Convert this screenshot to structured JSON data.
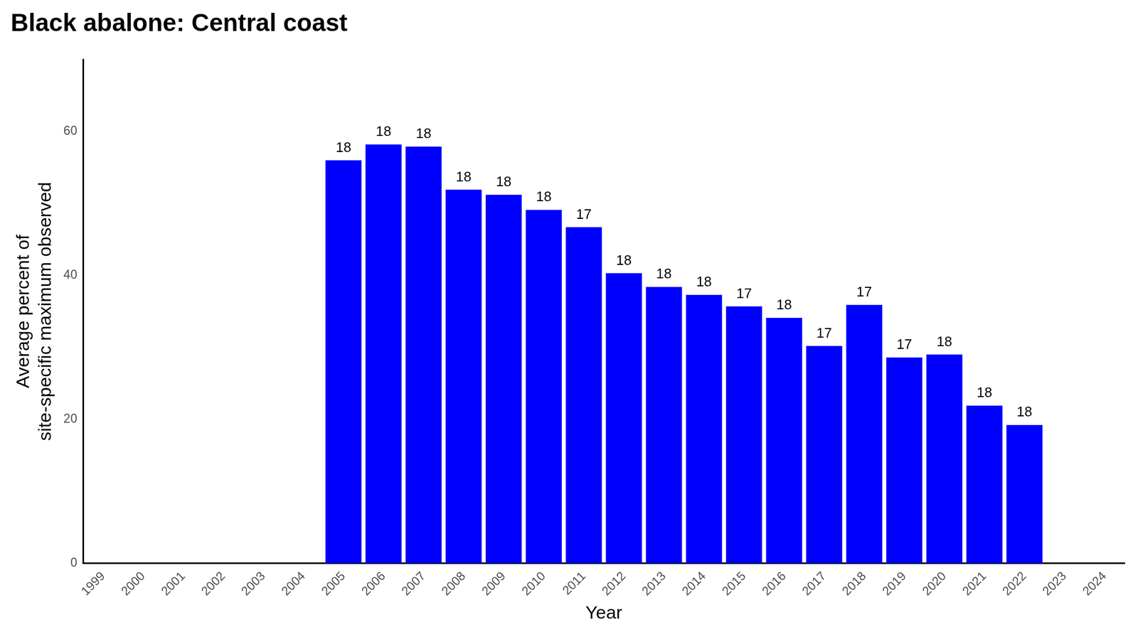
{
  "chart_data": {
    "type": "bar",
    "title": "Black abalone: Central coast",
    "x_label": "Year",
    "y_label": [
      "Average percent of",
      "site-specific maximum observed"
    ],
    "categories": [
      "1999",
      "2000",
      "2001",
      "2002",
      "2003",
      "2004",
      "2005",
      "2006",
      "2007",
      "2008",
      "2009",
      "2010",
      "2011",
      "2012",
      "2013",
      "2014",
      "2015",
      "2016",
      "2017",
      "2018",
      "2019",
      "2020",
      "2021",
      "2022",
      "2023",
      "2024"
    ],
    "values": [
      null,
      null,
      null,
      null,
      null,
      null,
      56.0,
      58.2,
      57.9,
      51.9,
      51.2,
      49.1,
      46.7,
      40.3,
      38.4,
      37.3,
      35.7,
      34.1,
      30.2,
      35.9,
      28.6,
      29.0,
      21.9,
      19.2,
      null,
      null
    ],
    "site_counts": [
      null,
      null,
      null,
      null,
      null,
      null,
      18,
      18,
      18,
      18,
      18,
      18,
      17,
      18,
      18,
      18,
      17,
      18,
      17,
      17,
      17,
      18,
      18,
      18,
      null,
      null
    ],
    "color": "#0000ff",
    "ylim": [
      0,
      70
    ],
    "yticks": [
      0,
      20,
      40,
      60
    ],
    "grid": false
  }
}
